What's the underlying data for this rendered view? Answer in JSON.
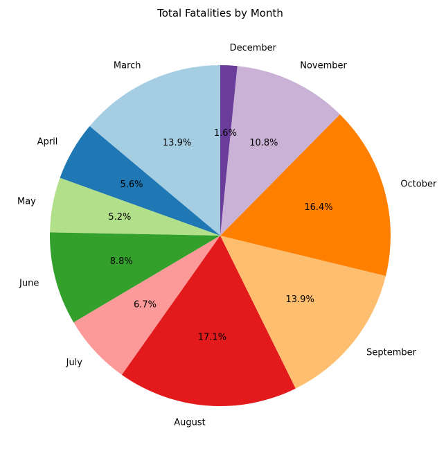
{
  "chart_data": {
    "type": "pie",
    "title": "Total Fatalities by Month",
    "start_angle_deg": 90,
    "direction": "counterclockwise",
    "legend": "none",
    "slices": [
      {
        "label": "March",
        "value": 13.9,
        "pct_label": "13.9%",
        "color": "#a6cee3"
      },
      {
        "label": "April",
        "value": 5.6,
        "pct_label": "5.6%",
        "color": "#1f78b4"
      },
      {
        "label": "May",
        "value": 5.2,
        "pct_label": "5.2%",
        "color": "#b2df8a"
      },
      {
        "label": "June",
        "value": 8.8,
        "pct_label": "8.8%",
        "color": "#33a02c"
      },
      {
        "label": "July",
        "value": 6.7,
        "pct_label": "6.7%",
        "color": "#fb9a99"
      },
      {
        "label": "August",
        "value": 17.1,
        "pct_label": "17.1%",
        "color": "#e31a1c"
      },
      {
        "label": "September",
        "value": 13.9,
        "pct_label": "13.9%",
        "color": "#fdbf6f"
      },
      {
        "label": "October",
        "value": 16.4,
        "pct_label": "16.4%",
        "color": "#ff7f00"
      },
      {
        "label": "November",
        "value": 10.8,
        "pct_label": "10.8%",
        "color": "#cab2d6"
      },
      {
        "label": "December",
        "value": 1.6,
        "pct_label": "1.6%",
        "color": "#6a3d9a"
      }
    ]
  }
}
